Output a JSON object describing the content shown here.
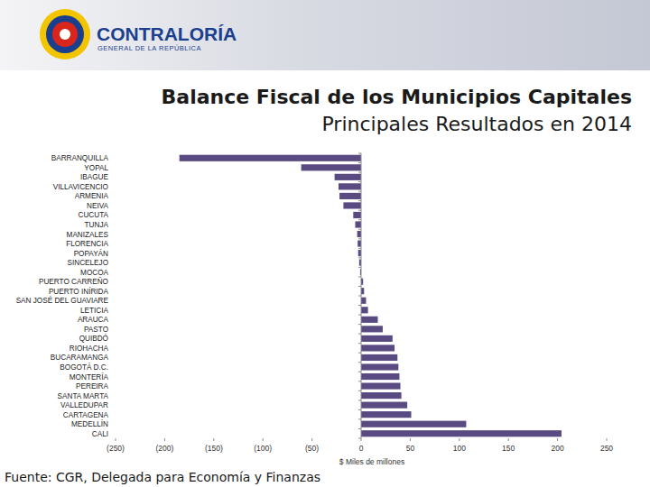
{
  "logo": {
    "name": "CONTRALORÍA",
    "subtitle": "GENERAL DE LA REPÚBLICA"
  },
  "footer": "Fuente: CGR, Delegada para Economía y Finanzas",
  "chart_data": {
    "type": "bar",
    "orientation": "horizontal",
    "title": "Balance Fiscal de los Municipios Capitales",
    "subtitle": "Principales Resultados en 2014",
    "xlabel": "$ Miles de millones",
    "categories": [
      "BARRANQUILLA",
      "YOPAL",
      "IBAGUE",
      "VILLAVICENCIO",
      "ARMENIA",
      "NEIVA",
      "CUCUTA",
      "TUNJA",
      "MANIZALES",
      "FLORENCIA",
      "POPAYÁN",
      "SINCELEJO",
      "MOCOA",
      "PUERTO CARREÑO",
      "PUERTO INÍRIDA",
      "SAN JOSÉ DEL GUAVIARE",
      "LETICIA",
      "ARAUCA",
      "PASTO",
      "QUIBDÓ",
      "RIOHACHA",
      "BUCARAMANGA",
      "BOGOTÁ D.C.",
      "MONTERÍA",
      "PEREIRA",
      "SANTA MARTA",
      "VALLEDUPAR",
      "CARTAGENA",
      "MEDELLÍN",
      "CALI"
    ],
    "values": [
      -185,
      -61,
      -27,
      -23,
      -22,
      -18,
      -8,
      -6,
      -4,
      -3.5,
      -3,
      -2,
      -1,
      2,
      3,
      5,
      7,
      17,
      22,
      32,
      34,
      37,
      38,
      39,
      40,
      41,
      47,
      51,
      107,
      204
    ],
    "color": "#594a82",
    "xlim": [
      -250,
      250
    ],
    "xticks": [
      {
        "value": -250,
        "label": "(250)"
      },
      {
        "value": -200,
        "label": "(200)"
      },
      {
        "value": -150,
        "label": "(150)"
      },
      {
        "value": -100,
        "label": "(100)"
      },
      {
        "value": -50,
        "label": "(50)"
      },
      0,
      50,
      100,
      150,
      200,
      250
    ],
    "grid": false
  }
}
